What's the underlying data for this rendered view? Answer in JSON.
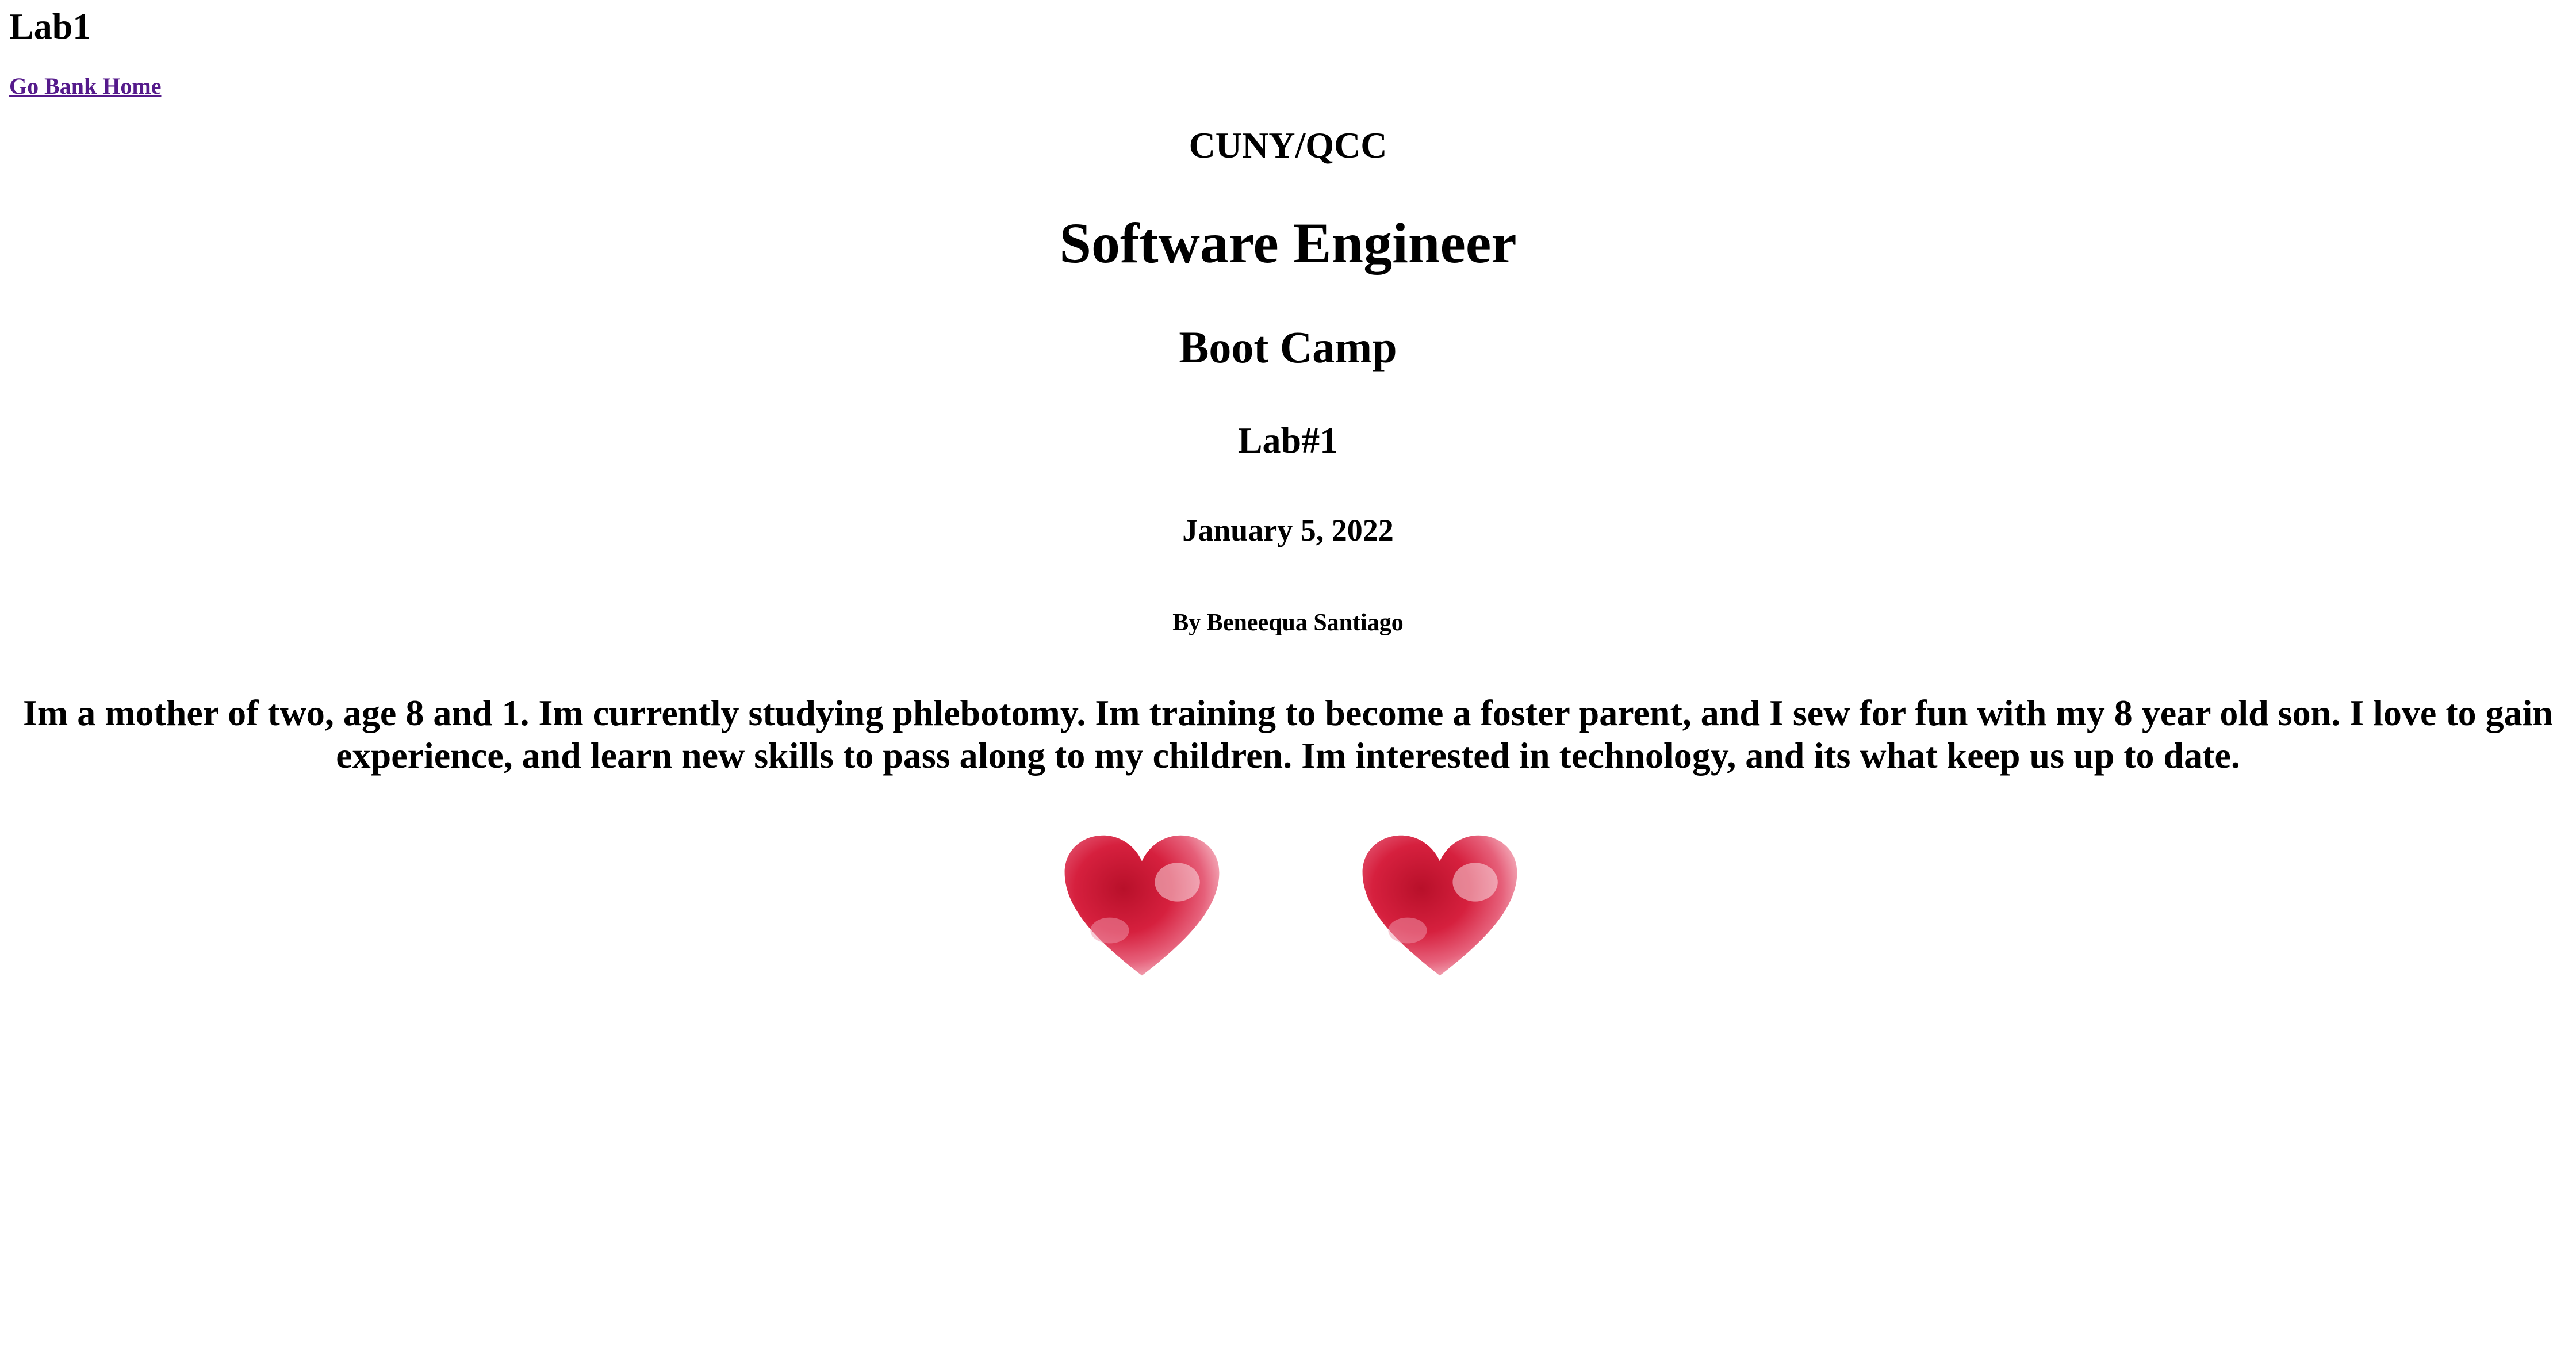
{
  "page": {
    "heading": "Lab1",
    "home_link": "Go Bank Home"
  },
  "main": {
    "org": "CUNY/QCC",
    "title": "Software Engineer",
    "subtitle": "Boot Camp",
    "lab": "Lab#1",
    "date": "January 5, 2022",
    "author": "By Beneequa Santiago",
    "bio": "Im a mother of two, age 8 and 1. Im currently studying phlebotomy. Im training to become a foster parent, and I sew for fun with my 8 year old son. I love to gain experience, and learn new skills to pass along to my children. Im interested in technology, and its what keep us up to date."
  },
  "images": {
    "heart_left": "heart-image",
    "heart_right": "heart-image"
  },
  "colors": {
    "link": "#551a8b",
    "heart_dark": "#c8102e",
    "heart_light": "#f7c1cc"
  }
}
